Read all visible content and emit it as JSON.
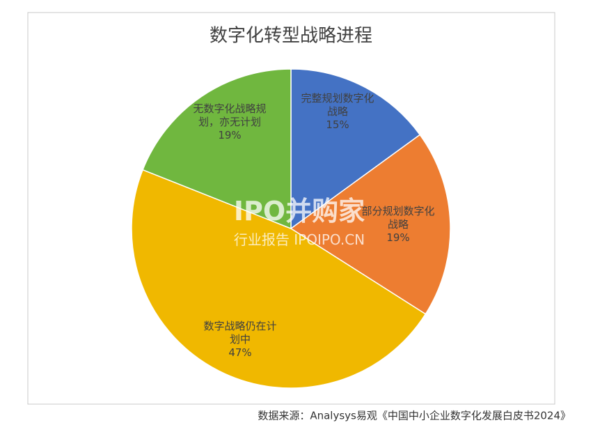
{
  "chart_data": {
    "type": "pie",
    "title": "数字化转型战略进程",
    "categories": [
      "完整规划数字化战略",
      "部分规划数字化战略",
      "数字战略仍在计划中",
      "无数字化战略规划，亦无计划"
    ],
    "values": [
      15,
      19,
      47,
      19
    ],
    "value_labels": [
      "15%",
      "19%",
      "47%",
      "19%"
    ],
    "colors": [
      "#4472c4",
      "#ed7d31",
      "#f0b800",
      "#70b73f"
    ],
    "source": "数据来源：Analysys易观《中国中小企业数字化发展白皮书2024》",
    "watermark": [
      "IPO并购家",
      "行业报告 IPOIPO.CN"
    ]
  }
}
